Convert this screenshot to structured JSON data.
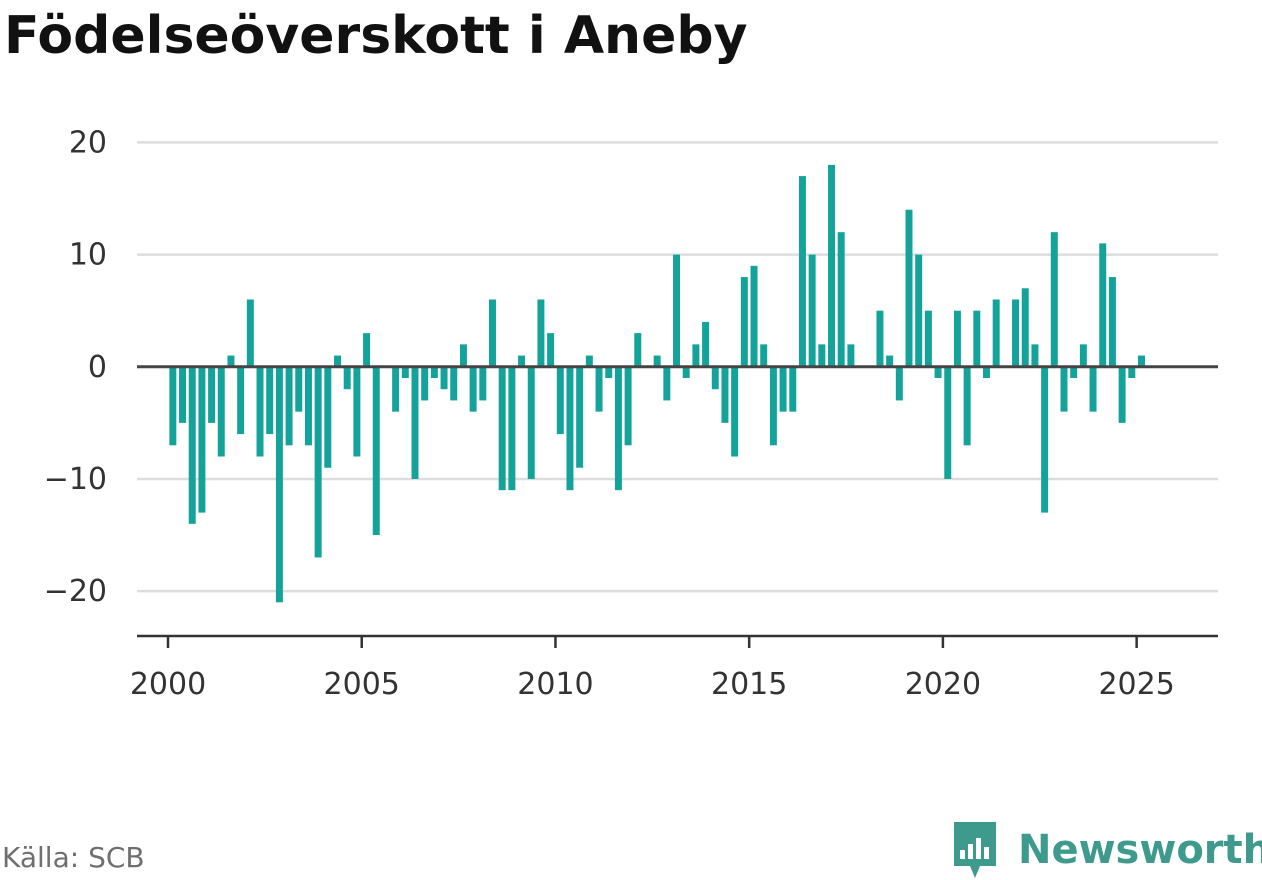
{
  "title": "Födelseöverskott i Aneby",
  "source": "Källa: SCB",
  "brand": {
    "name": "Newsworthy",
    "icon": "newsworthy-logo-icon",
    "color": "#3f9a8e"
  },
  "chart_data": {
    "type": "bar",
    "title": "Födelseöverskott i Aneby",
    "xlabel": "",
    "ylabel": "",
    "bar_color": "#14a39a",
    "ylim": [
      -24,
      22
    ],
    "xlim": [
      1999.2,
      2027.1
    ],
    "yticks": [
      20,
      10,
      0,
      -10,
      -20
    ],
    "ytick_labels": [
      "20",
      "10",
      "0",
      "−10",
      "−20"
    ],
    "xticks": [
      2000,
      2005,
      2010,
      2015,
      2020,
      2025
    ],
    "xtick_labels": [
      "2000",
      "2005",
      "2010",
      "2015",
      "2020",
      "2025"
    ],
    "grid": true,
    "legend": "none",
    "bar_step_years": 0.25,
    "x_start": 2000.125,
    "values": [
      -7,
      -5,
      -14,
      -13,
      -5,
      -8,
      1,
      -6,
      6,
      -8,
      -6,
      -21,
      -7,
      -4,
      -7,
      -17,
      -9,
      1,
      -2,
      -8,
      3,
      -15,
      0,
      -4,
      -1,
      -10,
      -3,
      -1,
      -2,
      -3,
      2,
      -4,
      -3,
      6,
      -11,
      -11,
      1,
      -10,
      6,
      3,
      -6,
      -11,
      -9,
      1,
      -4,
      -1,
      -11,
      -7,
      3,
      0,
      1,
      -3,
      10,
      -1,
      2,
      4,
      -2,
      -5,
      -8,
      8,
      9,
      2,
      -7,
      -4,
      -4,
      17,
      10,
      2,
      18,
      12,
      2,
      0,
      0,
      5,
      1,
      -3,
      14,
      10,
      5,
      -1,
      -10,
      5,
      -7,
      5,
      -1,
      6,
      0,
      6,
      7,
      2,
      -13,
      12,
      -4,
      -1,
      2,
      -4,
      11,
      8,
      -5,
      -1,
      1
    ]
  }
}
